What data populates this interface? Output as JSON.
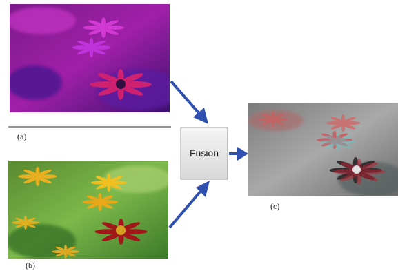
{
  "panels": [
    {
      "label": "(a)"
    },
    {
      "label": "(b)"
    },
    {
      "label": "(c)"
    }
  ],
  "fusion_box": {
    "label": "Fusion"
  }
}
